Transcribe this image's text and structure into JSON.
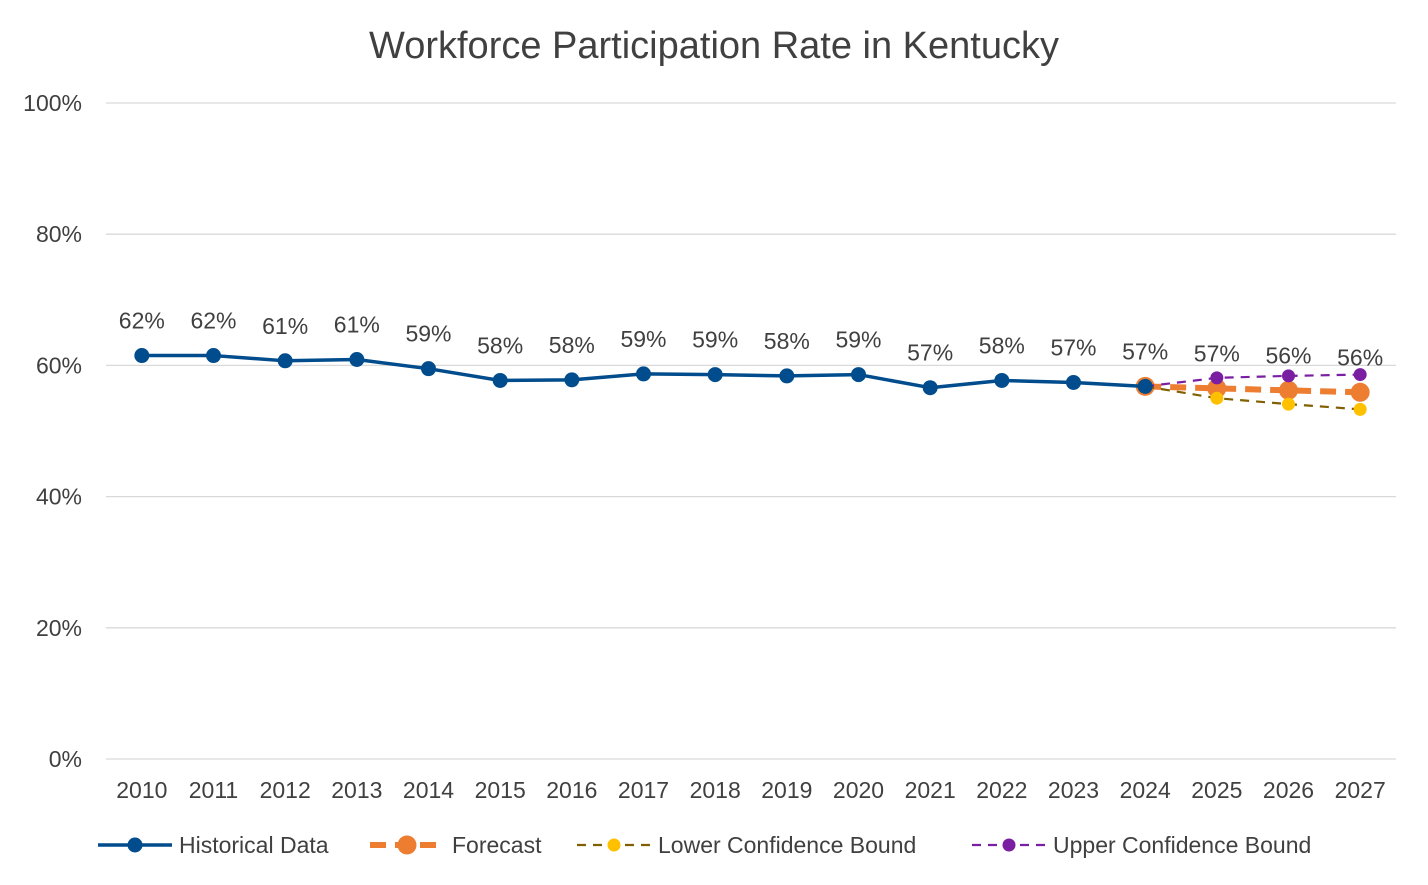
{
  "chart_data": {
    "type": "line",
    "title": "Workforce Participation Rate in Kentucky",
    "xlabel": "",
    "ylabel": "",
    "categories": [
      "2010",
      "2011",
      "2012",
      "2013",
      "2014",
      "2015",
      "2016",
      "2017",
      "2018",
      "2019",
      "2020",
      "2021",
      "2022",
      "2023",
      "2024",
      "2025",
      "2026",
      "2027"
    ],
    "y_ticks": [
      "0%",
      "20%",
      "40%",
      "60%",
      "80%",
      "100%"
    ],
    "ylim": [
      0,
      100
    ],
    "grid": true,
    "legend_position": "bottom",
    "series": [
      {
        "name": "Historical Data",
        "color": "#004C8C",
        "style": "solid",
        "values": [
          61.5,
          61.5,
          60.7,
          60.9,
          59.5,
          57.7,
          57.8,
          58.7,
          58.6,
          58.4,
          58.6,
          56.6,
          57.7,
          57.4,
          56.8,
          null,
          null,
          null
        ],
        "labels": [
          "62%",
          "62%",
          "61%",
          "61%",
          "59%",
          "58%",
          "58%",
          "59%",
          "59%",
          "58%",
          "59%",
          "57%",
          "58%",
          "57%",
          "57%",
          null,
          null,
          null
        ]
      },
      {
        "name": "Forecast",
        "color": "#ED7D31",
        "style": "dashed-thick",
        "values": [
          null,
          null,
          null,
          null,
          null,
          null,
          null,
          null,
          null,
          null,
          null,
          null,
          null,
          null,
          56.8,
          56.5,
          56.2,
          55.9
        ],
        "labels": [
          null,
          null,
          null,
          null,
          null,
          null,
          null,
          null,
          null,
          null,
          null,
          null,
          null,
          null,
          null,
          "57%",
          "56%",
          "56%"
        ]
      },
      {
        "name": "Lower Confidence Bound",
        "color": "#FFC000",
        "line_color": "#806000",
        "style": "dashed",
        "values": [
          null,
          null,
          null,
          null,
          null,
          null,
          null,
          null,
          null,
          null,
          null,
          null,
          null,
          null,
          56.8,
          55.0,
          54.1,
          53.3
        ]
      },
      {
        "name": "Upper Confidence Bound",
        "color": "#7B1FA2",
        "line_color": "#7B1FA2",
        "style": "dashed",
        "values": [
          null,
          null,
          null,
          null,
          null,
          null,
          null,
          null,
          null,
          null,
          null,
          null,
          null,
          null,
          56.8,
          58.1,
          58.4,
          58.6
        ]
      }
    ]
  }
}
